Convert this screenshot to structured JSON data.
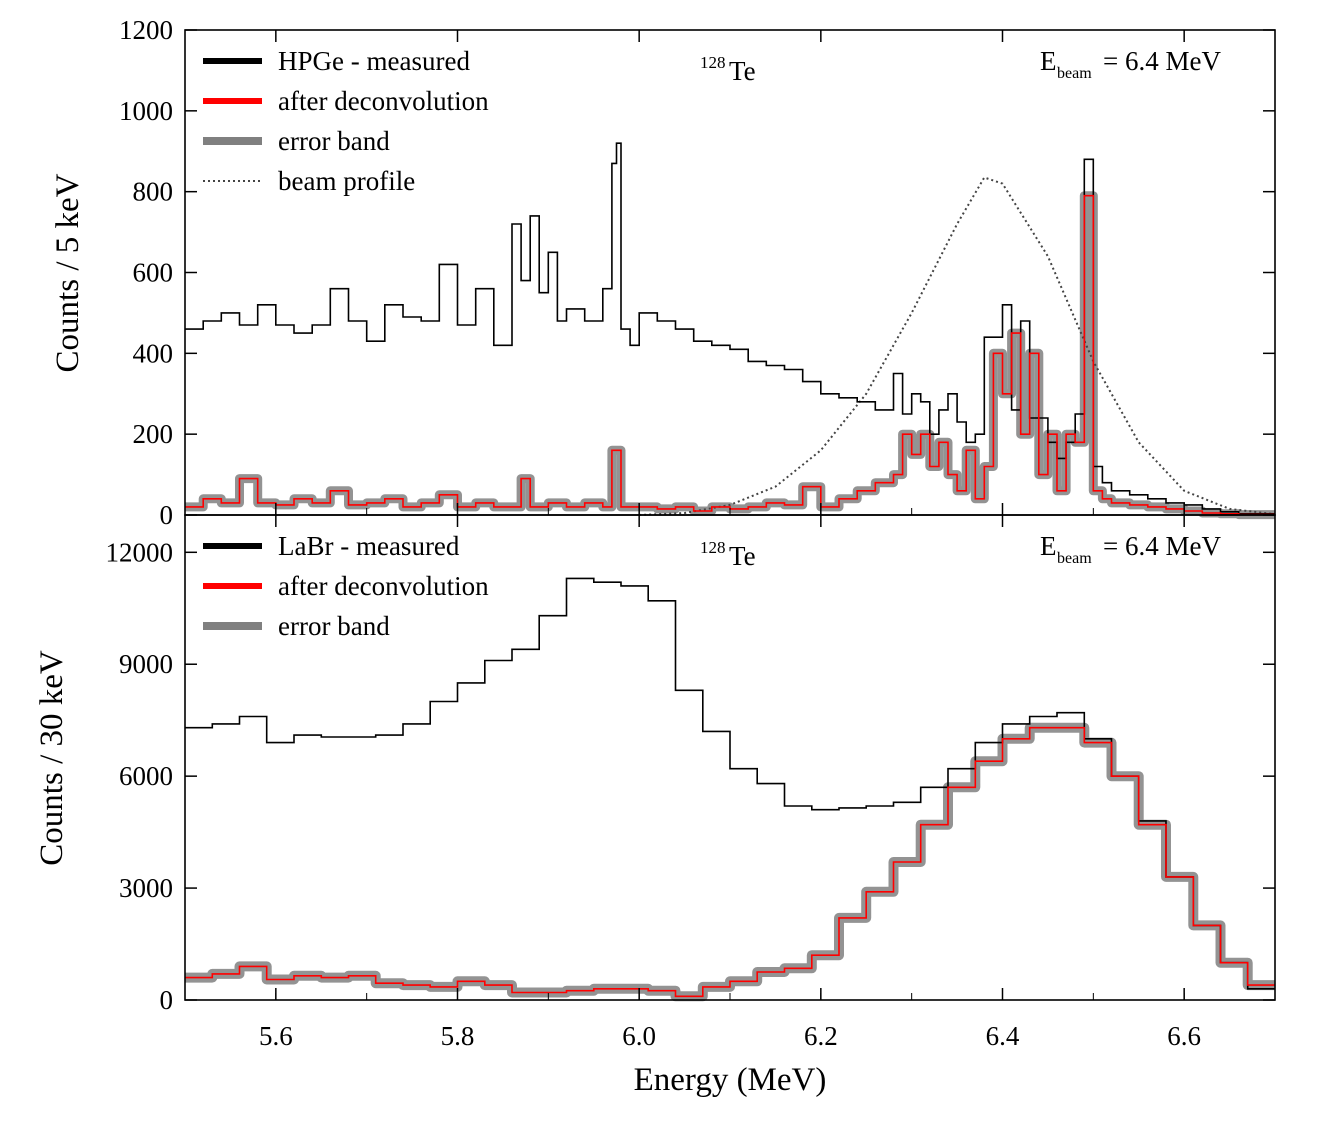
{
  "chart_data": [
    {
      "type": "line",
      "panel": "top",
      "xlabel": "Energy (MeV)",
      "ylabel": "Counts / 5 keV",
      "xlim": [
        5.5,
        6.7
      ],
      "ylim": [
        0,
        1200
      ],
      "yticks": [
        "0",
        "200",
        "400",
        "600",
        "800",
        "1000",
        "1200"
      ],
      "annotation_isotope": {
        "mass": "128",
        "element": "Te"
      },
      "annotation_beam": {
        "main": "E",
        "sub": "beam",
        "rest": " = 6.4 MeV"
      },
      "legend": [
        {
          "name": "HPGe - measured",
          "color": "#000000",
          "style": "solid"
        },
        {
          "name": "after deconvolution",
          "color": "#ff0000",
          "style": "solid"
        },
        {
          "name": "error band",
          "color": "#808080",
          "style": "band"
        },
        {
          "name": "beam profile",
          "color": "#444444",
          "style": "dotted"
        }
      ],
      "series": [
        {
          "name": "HPGe - measured",
          "x": [
            5.5,
            5.52,
            5.54,
            5.56,
            5.58,
            5.6,
            5.62,
            5.64,
            5.66,
            5.68,
            5.7,
            5.72,
            5.74,
            5.76,
            5.78,
            5.8,
            5.82,
            5.84,
            5.86,
            5.87,
            5.88,
            5.89,
            5.9,
            5.91,
            5.92,
            5.94,
            5.96,
            5.97,
            5.975,
            5.98,
            5.99,
            6.0,
            6.02,
            6.04,
            6.06,
            6.08,
            6.1,
            6.12,
            6.14,
            6.16,
            6.18,
            6.2,
            6.22,
            6.24,
            6.26,
            6.28,
            6.29,
            6.3,
            6.31,
            6.32,
            6.33,
            6.34,
            6.35,
            6.36,
            6.37,
            6.38,
            6.39,
            6.4,
            6.41,
            6.42,
            6.43,
            6.44,
            6.45,
            6.46,
            6.47,
            6.48,
            6.49,
            6.5,
            6.51,
            6.52,
            6.54,
            6.56,
            6.58,
            6.6,
            6.62,
            6.64,
            6.66
          ],
          "values": [
            460,
            480,
            500,
            470,
            520,
            470,
            450,
            470,
            560,
            480,
            430,
            520,
            490,
            480,
            620,
            470,
            560,
            420,
            720,
            580,
            740,
            550,
            650,
            480,
            510,
            480,
            560,
            870,
            920,
            460,
            420,
            500,
            480,
            460,
            430,
            420,
            410,
            380,
            370,
            360,
            330,
            300,
            290,
            280,
            260,
            350,
            250,
            300,
            280,
            200,
            260,
            300,
            230,
            180,
            200,
            440,
            440,
            520,
            260,
            480,
            240,
            240,
            180,
            140,
            180,
            250,
            880,
            120,
            80,
            60,
            50,
            40,
            30,
            25,
            15,
            8,
            3
          ]
        },
        {
          "name": "after deconvolution",
          "x": [
            5.5,
            5.52,
            5.54,
            5.56,
            5.58,
            5.6,
            5.62,
            5.64,
            5.66,
            5.68,
            5.7,
            5.72,
            5.74,
            5.76,
            5.78,
            5.8,
            5.82,
            5.84,
            5.86,
            5.87,
            5.88,
            5.9,
            5.92,
            5.94,
            5.96,
            5.97,
            5.975,
            5.98,
            6.0,
            6.02,
            6.04,
            6.06,
            6.08,
            6.1,
            6.12,
            6.14,
            6.16,
            6.18,
            6.2,
            6.22,
            6.24,
            6.26,
            6.28,
            6.29,
            6.3,
            6.31,
            6.32,
            6.33,
            6.34,
            6.35,
            6.36,
            6.37,
            6.38,
            6.39,
            6.4,
            6.41,
            6.42,
            6.43,
            6.44,
            6.45,
            6.46,
            6.47,
            6.48,
            6.49,
            6.5,
            6.51,
            6.52,
            6.54,
            6.56,
            6.58,
            6.6,
            6.62,
            6.64,
            6.66
          ],
          "values": [
            20,
            40,
            30,
            90,
            30,
            25,
            40,
            30,
            60,
            25,
            30,
            40,
            20,
            30,
            50,
            20,
            30,
            20,
            20,
            90,
            20,
            30,
            20,
            30,
            20,
            160,
            160,
            20,
            20,
            15,
            20,
            10,
            20,
            15,
            20,
            30,
            25,
            70,
            20,
            40,
            60,
            80,
            100,
            200,
            150,
            200,
            120,
            180,
            100,
            60,
            160,
            40,
            120,
            400,
            300,
            450,
            200,
            400,
            100,
            200,
            60,
            200,
            180,
            790,
            60,
            40,
            30,
            25,
            20,
            15,
            10,
            5,
            3,
            1
          ]
        },
        {
          "name": "beam profile",
          "x": [
            6.0,
            6.05,
            6.1,
            6.15,
            6.2,
            6.25,
            6.3,
            6.35,
            6.38,
            6.4,
            6.45,
            6.5,
            6.55,
            6.6,
            6.65,
            6.7
          ],
          "values": [
            0,
            5,
            25,
            70,
            160,
            300,
            500,
            720,
            835,
            820,
            640,
            380,
            180,
            60,
            15,
            2
          ]
        }
      ]
    },
    {
      "type": "line",
      "panel": "bottom",
      "xlabel": "Energy (MeV)",
      "ylabel": "Counts / 30 keV",
      "xlim": [
        5.5,
        6.7
      ],
      "ylim": [
        0,
        13000
      ],
      "xticks": [
        "5.6",
        "5.8",
        "6.0",
        "6.2",
        "6.4",
        "6.6"
      ],
      "yticks": [
        "0",
        "3000",
        "6000",
        "9000",
        "12000"
      ],
      "annotation_isotope": {
        "mass": "128",
        "element": "Te"
      },
      "annotation_beam": {
        "main": "E",
        "sub": "beam",
        "rest": " = 6.4 MeV"
      },
      "legend": [
        {
          "name": "LaBr - measured",
          "color": "#000000",
          "style": "solid"
        },
        {
          "name": "after deconvolution",
          "color": "#ff0000",
          "style": "solid"
        },
        {
          "name": "error band",
          "color": "#808080",
          "style": "band"
        }
      ],
      "series": [
        {
          "name": "LaBr - measured",
          "x": [
            5.5,
            5.53,
            5.56,
            5.59,
            5.62,
            5.65,
            5.68,
            5.71,
            5.74,
            5.77,
            5.8,
            5.83,
            5.86,
            5.89,
            5.92,
            5.95,
            5.98,
            6.01,
            6.04,
            6.07,
            6.1,
            6.13,
            6.16,
            6.19,
            6.22,
            6.25,
            6.28,
            6.31,
            6.34,
            6.37,
            6.4,
            6.43,
            6.46,
            6.49,
            6.52,
            6.55,
            6.58,
            6.61,
            6.64,
            6.67
          ],
          "values": [
            7300,
            7400,
            7600,
            6900,
            7100,
            7050,
            7050,
            7100,
            7400,
            8000,
            8500,
            9100,
            9400,
            10300,
            11300,
            11200,
            11100,
            10700,
            8300,
            7200,
            6200,
            5800,
            5200,
            5100,
            5150,
            5200,
            5300,
            5700,
            6200,
            6900,
            7400,
            7600,
            7700,
            7000,
            6000,
            4800,
            3300,
            2000,
            1000,
            300
          ]
        },
        {
          "name": "after deconvolution",
          "x": [
            5.5,
            5.53,
            5.56,
            5.59,
            5.62,
            5.65,
            5.68,
            5.71,
            5.74,
            5.77,
            5.8,
            5.83,
            5.86,
            5.89,
            5.92,
            5.95,
            5.98,
            6.01,
            6.04,
            6.07,
            6.1,
            6.13,
            6.16,
            6.19,
            6.22,
            6.25,
            6.28,
            6.31,
            6.34,
            6.37,
            6.4,
            6.43,
            6.46,
            6.49,
            6.52,
            6.55,
            6.58,
            6.61,
            6.64,
            6.67
          ],
          "values": [
            600,
            700,
            900,
            550,
            650,
            600,
            650,
            450,
            400,
            350,
            500,
            400,
            200,
            200,
            250,
            300,
            300,
            250,
            100,
            350,
            500,
            750,
            850,
            1200,
            2200,
            2900,
            3700,
            4700,
            5700,
            6400,
            7000,
            7300,
            7300,
            6900,
            6000,
            4700,
            3300,
            2000,
            1000,
            400
          ]
        }
      ]
    }
  ]
}
